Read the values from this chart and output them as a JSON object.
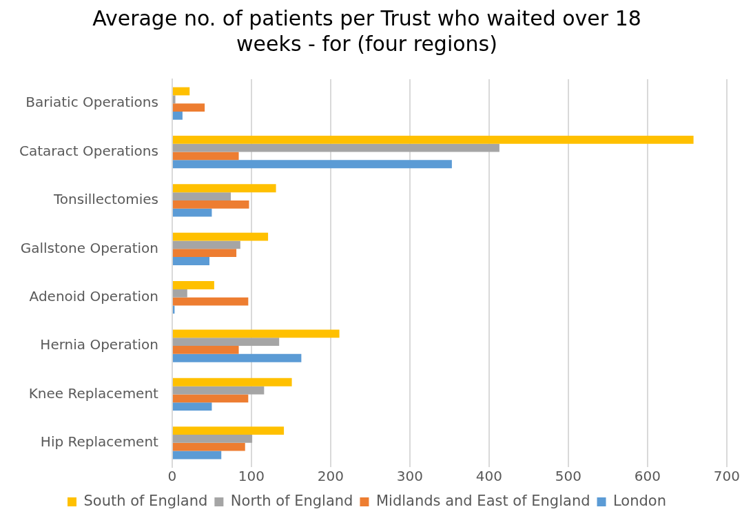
{
  "chart_data": {
    "type": "bar",
    "orientation": "horizontal",
    "title": "Average no. of patients per Trust who waited over 18 weeks - for (four regions)",
    "categories": [
      "Bariatic Operations",
      "Cataract Operations",
      "Tonsillectomies",
      "Gallstone Operation",
      "Adenoid Operation",
      "Hernia Operation",
      "Knee Replacement",
      "Hip Replacement"
    ],
    "series": [
      {
        "name": "South of England",
        "color": "#ffc000",
        "values": [
          22,
          658,
          131,
          121,
          53,
          211,
          151,
          141
        ]
      },
      {
        "name": "North of England",
        "color": "#a5a5a5",
        "values": [
          4,
          413,
          74,
          86,
          19,
          135,
          116,
          101
        ]
      },
      {
        "name": "Midlands and East of England",
        "color": "#ed7d31",
        "values": [
          41,
          84,
          97,
          81,
          96,
          84,
          96,
          92
        ]
      },
      {
        "name": "London",
        "color": "#5b9bd5",
        "values": [
          13,
          353,
          50,
          47,
          3,
          163,
          50,
          62
        ]
      }
    ],
    "xlim": [
      0,
      700
    ],
    "xticks": [
      0,
      100,
      200,
      300,
      400,
      500,
      600,
      700
    ],
    "grid": "x",
    "legend": "bottom"
  }
}
